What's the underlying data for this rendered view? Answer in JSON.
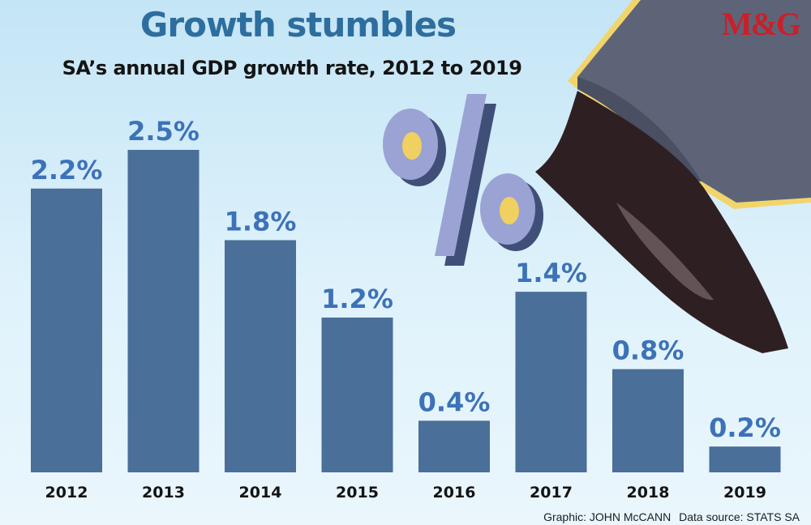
{
  "header": {
    "title": "Growth stumbles",
    "subtitle": "SA’s annual GDP growth rate, 2012 to 2019",
    "brand": "M&G"
  },
  "footer": {
    "graphic_credit": "Graphic: JOHN McCANN",
    "source_credit": "Data source: STATS SA"
  },
  "colors": {
    "bar": "#4a6f98",
    "value_label": "#3d72b8",
    "title": "#2d6e9e",
    "brand": "#c8202a"
  },
  "chart_data": {
    "type": "bar",
    "title": "Growth stumbles",
    "subtitle": "SA’s annual GDP growth rate, 2012 to 2019",
    "xlabel": "",
    "ylabel": "",
    "categories": [
      "2012",
      "2013",
      "2014",
      "2015",
      "2016",
      "2017",
      "2018",
      "2019"
    ],
    "values": [
      2.2,
      2.5,
      1.8,
      1.2,
      0.4,
      1.4,
      0.8,
      0.2
    ],
    "value_labels": [
      "2.2%",
      "2.5%",
      "1.8%",
      "1.2%",
      "0.4%",
      "1.4%",
      "0.8%",
      "0.2%"
    ],
    "ylim": [
      0,
      2.5
    ],
    "grid": false,
    "legend": "none"
  }
}
